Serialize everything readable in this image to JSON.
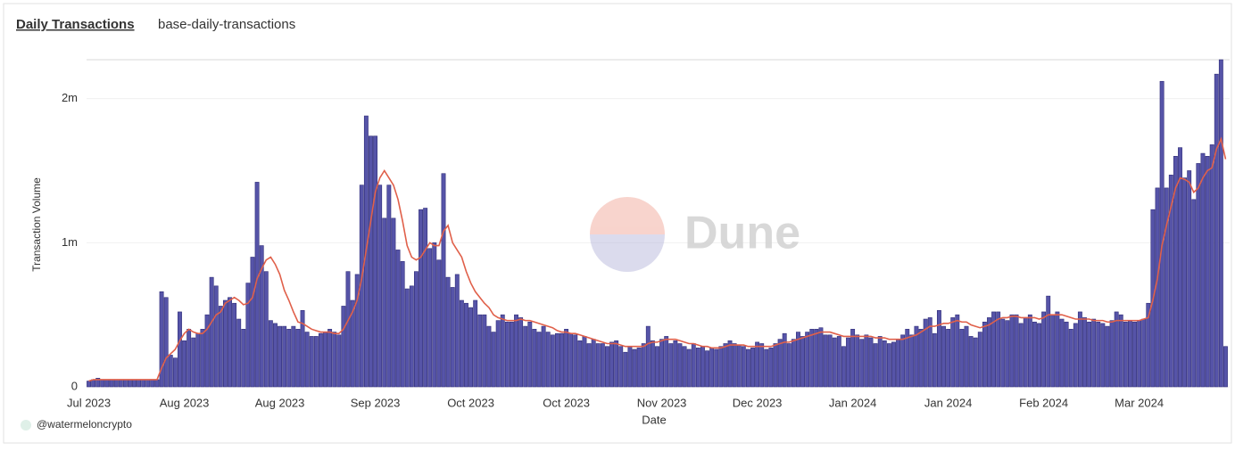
{
  "chart_data": {
    "type": "bar",
    "title": "Daily Transactions",
    "subtitle": "base-daily-transactions",
    "y_label": "Transaction Volume",
    "x_label": "Date",
    "watermark": "Dune",
    "credit": "@watermeloncrypto",
    "ylim": [
      0,
      2.27
    ],
    "yticks": [
      0,
      {
        "value": 1,
        "label": "1m"
      },
      {
        "value": 2,
        "label": "2m"
      }
    ],
    "grid": true,
    "categories": [
      "Jul 2023",
      null,
      null,
      null,
      null,
      null,
      null,
      null,
      null,
      null,
      null,
      null,
      null,
      null,
      null,
      null,
      null,
      null,
      null,
      null,
      null,
      "Aug 2023",
      null,
      null,
      null,
      null,
      null,
      null,
      null,
      null,
      null,
      null,
      null,
      null,
      null,
      null,
      null,
      null,
      null,
      null,
      null,
      null,
      "Aug 2023",
      null,
      null,
      null,
      null,
      null,
      null,
      null,
      null,
      null,
      null,
      null,
      null,
      null,
      null,
      null,
      null,
      null,
      null,
      null,
      null,
      "Sep 2023",
      null,
      null,
      null,
      null,
      null,
      null,
      null,
      null,
      null,
      null,
      null,
      null,
      null,
      null,
      null,
      null,
      null,
      null,
      null,
      null,
      "Oct 2023",
      null,
      null,
      null,
      null,
      null,
      null,
      null,
      null,
      null,
      null,
      null,
      null,
      null,
      null,
      null,
      null,
      null,
      null,
      null,
      null,
      "Oct 2023",
      null,
      null,
      null,
      null,
      null,
      null,
      null,
      null,
      null,
      null,
      null,
      null,
      null,
      null,
      null,
      null,
      null,
      null,
      null,
      null,
      "Nov 2023",
      null,
      null,
      null,
      null,
      null,
      null,
      null,
      null,
      null,
      null,
      null,
      null,
      null,
      null,
      null,
      null,
      null,
      null,
      null,
      null,
      "Dec 2023",
      null,
      null,
      null,
      null,
      null,
      null,
      null,
      null,
      null,
      null,
      null,
      null,
      null,
      null,
      null,
      null,
      null,
      null,
      null,
      null,
      "Jan 2024",
      null,
      null,
      null,
      null,
      null,
      null,
      null,
      null,
      null,
      null,
      null,
      null,
      null,
      null,
      null,
      null,
      null,
      null,
      null,
      null,
      "Jan 2024",
      null,
      null,
      null,
      null,
      null,
      null,
      null,
      null,
      null,
      null,
      null,
      null,
      null,
      null,
      null,
      null,
      null,
      null,
      null,
      null,
      "Feb 2024",
      null,
      null,
      null,
      null,
      null,
      null,
      null,
      null,
      null,
      null,
      null,
      null,
      null,
      null,
      null,
      null,
      null,
      null,
      null,
      null,
      "Mar 2024",
      null,
      null,
      null,
      null,
      null,
      null,
      null,
      null,
      null,
      null,
      null,
      null,
      null,
      null,
      null,
      null,
      null,
      null,
      null
    ],
    "series": [
      {
        "type": "bar",
        "color": "#5654a8",
        "values": [
          0.04,
          0.05,
          0.06,
          0.05,
          0.05,
          0.05,
          0.05,
          0.05,
          0.05,
          0.05,
          0.05,
          0.05,
          0.05,
          0.05,
          0.05,
          0.05,
          0.66,
          0.62,
          0.22,
          0.2,
          0.52,
          0.32,
          0.4,
          0.34,
          0.37,
          0.4,
          0.5,
          0.76,
          0.7,
          0.56,
          0.6,
          0.62,
          0.58,
          0.47,
          0.4,
          0.72,
          0.9,
          1.42,
          0.98,
          0.8,
          0.46,
          0.44,
          0.42,
          0.42,
          0.4,
          0.42,
          0.4,
          0.53,
          0.38,
          0.35,
          0.35,
          0.37,
          0.38,
          0.4,
          0.38,
          0.36,
          0.56,
          0.8,
          0.6,
          0.78,
          1.4,
          1.88,
          1.74,
          1.74,
          1.4,
          1.17,
          1.4,
          1.17,
          0.95,
          0.87,
          0.68,
          0.7,
          0.8,
          1.23,
          1.24,
          0.96,
          1.0,
          0.88,
          1.48,
          0.76,
          0.69,
          0.78,
          0.6,
          0.58,
          0.55,
          0.6,
          0.5,
          0.5,
          0.42,
          0.38,
          0.46,
          0.5,
          0.45,
          0.45,
          0.5,
          0.48,
          0.42,
          0.45,
          0.4,
          0.38,
          0.42,
          0.38,
          0.36,
          0.37,
          0.37,
          0.4,
          0.37,
          0.36,
          0.32,
          0.35,
          0.3,
          0.33,
          0.3,
          0.3,
          0.28,
          0.31,
          0.32,
          0.28,
          0.24,
          0.28,
          0.26,
          0.27,
          0.3,
          0.42,
          0.32,
          0.28,
          0.33,
          0.35,
          0.3,
          0.32,
          0.3,
          0.28,
          0.26,
          0.3,
          0.27,
          0.28,
          0.25,
          0.27,
          0.26,
          0.28,
          0.3,
          0.32,
          0.3,
          0.29,
          0.28,
          0.26,
          0.27,
          0.31,
          0.3,
          0.26,
          0.27,
          0.3,
          0.33,
          0.37,
          0.3,
          0.33,
          0.38,
          0.35,
          0.38,
          0.4,
          0.4,
          0.41,
          0.36,
          0.36,
          0.34,
          0.35,
          0.28,
          0.34,
          0.4,
          0.36,
          0.33,
          0.36,
          0.34,
          0.3,
          0.35,
          0.32,
          0.3,
          0.31,
          0.33,
          0.36,
          0.4,
          0.36,
          0.42,
          0.4,
          0.47,
          0.48,
          0.37,
          0.53,
          0.42,
          0.4,
          0.48,
          0.5,
          0.4,
          0.42,
          0.35,
          0.34,
          0.38,
          0.45,
          0.48,
          0.52,
          0.52,
          0.47,
          0.46,
          0.5,
          0.5,
          0.44,
          0.48,
          0.5,
          0.45,
          0.44,
          0.52,
          0.63,
          0.5,
          0.52,
          0.47,
          0.45,
          0.4,
          0.44,
          0.52,
          0.48,
          0.45,
          0.47,
          0.45,
          0.44,
          0.42,
          0.46,
          0.52,
          0.5,
          0.45,
          0.46,
          0.45,
          0.46,
          0.47,
          0.58,
          1.23,
          1.38,
          2.12,
          1.38,
          1.47,
          1.6,
          1.66,
          1.45,
          1.5,
          1.3,
          1.55,
          1.62,
          1.6,
          1.68,
          2.17,
          2.27,
          0.28
        ]
      },
      {
        "type": "line",
        "color": "#e0604a",
        "values": [
          0.04,
          0.05,
          0.05,
          0.05,
          0.05,
          0.05,
          0.05,
          0.05,
          0.05,
          0.05,
          0.05,
          0.05,
          0.05,
          0.05,
          0.05,
          0.05,
          0.13,
          0.2,
          0.23,
          0.26,
          0.32,
          0.37,
          0.4,
          0.38,
          0.37,
          0.37,
          0.4,
          0.45,
          0.5,
          0.52,
          0.58,
          0.6,
          0.62,
          0.6,
          0.57,
          0.58,
          0.62,
          0.75,
          0.82,
          0.88,
          0.9,
          0.85,
          0.78,
          0.67,
          0.6,
          0.52,
          0.45,
          0.44,
          0.42,
          0.4,
          0.39,
          0.38,
          0.38,
          0.38,
          0.37,
          0.37,
          0.4,
          0.46,
          0.52,
          0.6,
          0.75,
          0.95,
          1.15,
          1.35,
          1.45,
          1.5,
          1.45,
          1.4,
          1.3,
          1.15,
          0.98,
          0.9,
          0.88,
          0.9,
          0.95,
          1.0,
          0.98,
          0.98,
          1.08,
          1.12,
          1.0,
          0.95,
          0.9,
          0.8,
          0.72,
          0.66,
          0.62,
          0.58,
          0.55,
          0.5,
          0.48,
          0.47,
          0.46,
          0.46,
          0.46,
          0.47,
          0.46,
          0.46,
          0.45,
          0.44,
          0.43,
          0.42,
          0.41,
          0.39,
          0.38,
          0.38,
          0.37,
          0.37,
          0.36,
          0.35,
          0.34,
          0.33,
          0.32,
          0.31,
          0.3,
          0.3,
          0.3,
          0.29,
          0.28,
          0.28,
          0.28,
          0.28,
          0.28,
          0.3,
          0.31,
          0.31,
          0.32,
          0.33,
          0.33,
          0.33,
          0.32,
          0.31,
          0.3,
          0.3,
          0.29,
          0.28,
          0.28,
          0.27,
          0.27,
          0.27,
          0.28,
          0.29,
          0.29,
          0.29,
          0.29,
          0.28,
          0.28,
          0.28,
          0.28,
          0.28,
          0.28,
          0.29,
          0.3,
          0.31,
          0.31,
          0.32,
          0.33,
          0.34,
          0.35,
          0.36,
          0.37,
          0.38,
          0.38,
          0.38,
          0.37,
          0.36,
          0.35,
          0.35,
          0.35,
          0.35,
          0.35,
          0.35,
          0.35,
          0.34,
          0.34,
          0.34,
          0.33,
          0.33,
          0.33,
          0.33,
          0.34,
          0.35,
          0.36,
          0.38,
          0.4,
          0.42,
          0.42,
          0.43,
          0.44,
          0.44,
          0.45,
          0.46,
          0.45,
          0.45,
          0.43,
          0.42,
          0.41,
          0.42,
          0.43,
          0.45,
          0.47,
          0.48,
          0.48,
          0.49,
          0.49,
          0.48,
          0.48,
          0.48,
          0.48,
          0.47,
          0.48,
          0.5,
          0.5,
          0.5,
          0.5,
          0.49,
          0.48,
          0.47,
          0.47,
          0.47,
          0.47,
          0.46,
          0.46,
          0.46,
          0.45,
          0.45,
          0.46,
          0.46,
          0.46,
          0.46,
          0.46,
          0.46,
          0.47,
          0.48,
          0.6,
          0.75,
          0.98,
          1.12,
          1.25,
          1.38,
          1.45,
          1.44,
          1.42,
          1.35,
          1.38,
          1.45,
          1.5,
          1.52,
          1.65,
          1.72,
          1.58
        ]
      }
    ]
  }
}
